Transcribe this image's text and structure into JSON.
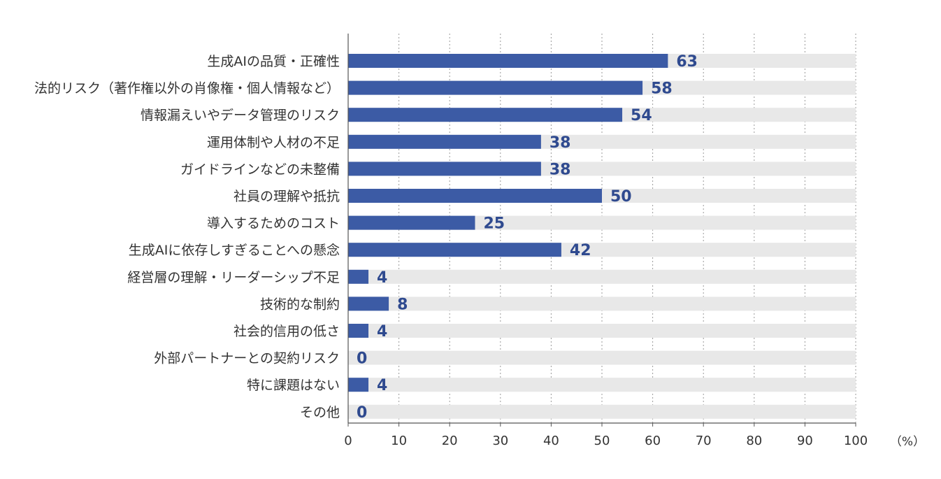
{
  "chart_data": {
    "type": "bar",
    "orientation": "horizontal",
    "categories": [
      "生成AIの品質・正確性",
      "法的リスク（著作権以外の肖像権・個人情報など）",
      "情報漏えいやデータ管理のリスク",
      "運用体制や人材の不足",
      "ガイドラインなどの未整備",
      "社員の理解や抵抗",
      "導入するためのコスト",
      "生成AIに依存しすぎることへの懸念",
      "経営層の理解・リーダーシップ不足",
      "技術的な制約",
      "社会的信用の低さ",
      "外部パートナーとの契約リスク",
      "特に課題はない",
      "その他"
    ],
    "values": [
      63,
      58,
      54,
      38,
      38,
      50,
      25,
      42,
      4,
      8,
      4,
      0,
      4,
      0
    ],
    "xlim": [
      0,
      100
    ],
    "xticks": [
      "0",
      "10",
      "20",
      "30",
      "40",
      "50",
      "60",
      "70",
      "80",
      "90",
      "100"
    ],
    "unit_label": "（%）",
    "grid": "vertical dotted",
    "legend": "none",
    "colors": {
      "bar": "#3c5ba5",
      "track": "#e8e8e8",
      "value_text": "#2f4a8f",
      "grid": "#9a9a9a",
      "axis": "#555555"
    }
  }
}
